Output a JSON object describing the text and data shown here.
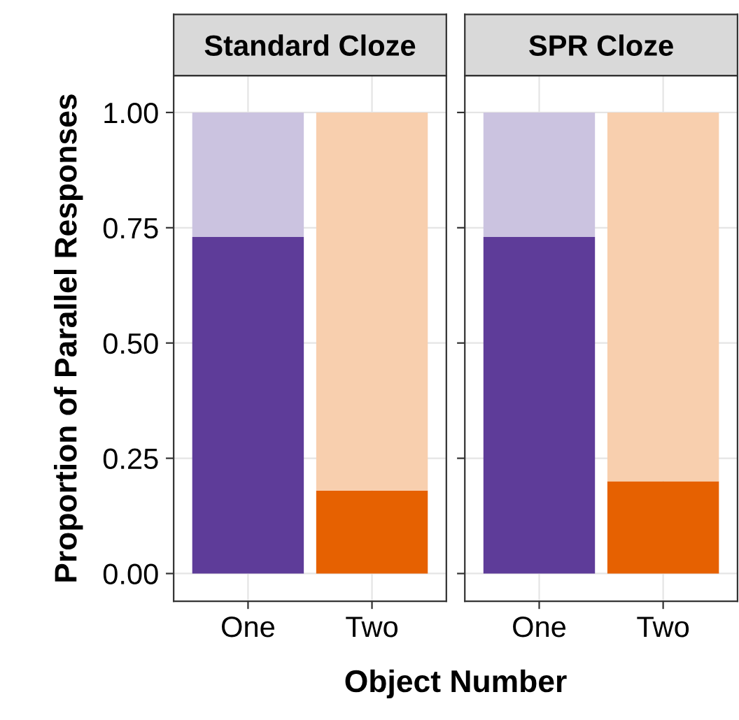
{
  "chart_data": [
    {
      "type": "bar",
      "title": "Standard Cloze",
      "xlabel": "Object Number",
      "ylabel": "Proportion of Parallel Responses",
      "categories": [
        "One",
        "Two"
      ],
      "stacked": true,
      "series": [
        {
          "colors": [
            "#5e3c99",
            "#e66101"
          ],
          "values": [
            0.73,
            0.18
          ]
        },
        {
          "colors": [
            "#cbc3e0",
            "#f8cfae"
          ],
          "values": [
            0.27,
            0.82
          ]
        }
      ],
      "ylim": [
        -0.06,
        1.08
      ],
      "yticks": [
        {
          "value": 0,
          "label": "0.00"
        },
        {
          "value": 0.25,
          "label": "0.25"
        },
        {
          "value": 0.5,
          "label": "0.50"
        },
        {
          "value": 0.75,
          "label": "0.75"
        },
        {
          "value": 1,
          "label": "1.00"
        }
      ],
      "grid": true
    },
    {
      "type": "bar",
      "title": "SPR Cloze",
      "categories": [
        "One",
        "Two"
      ],
      "stacked": true,
      "series": [
        {
          "colors": [
            "#5e3c99",
            "#e66101"
          ],
          "values": [
            0.73,
            0.2
          ]
        },
        {
          "colors": [
            "#cbc3e0",
            "#f8cfae"
          ],
          "values": [
            0.27,
            0.8
          ]
        }
      ],
      "ylim": [
        -0.06,
        1.08
      ],
      "yticks": [
        {
          "value": 0,
          "label": null
        },
        {
          "value": 0.25,
          "label": null
        },
        {
          "value": 0.5,
          "label": null
        },
        {
          "value": 0.75,
          "label": null
        },
        {
          "value": 1,
          "label": null
        }
      ],
      "grid": true,
      "tick_labels": "x"
    }
  ]
}
